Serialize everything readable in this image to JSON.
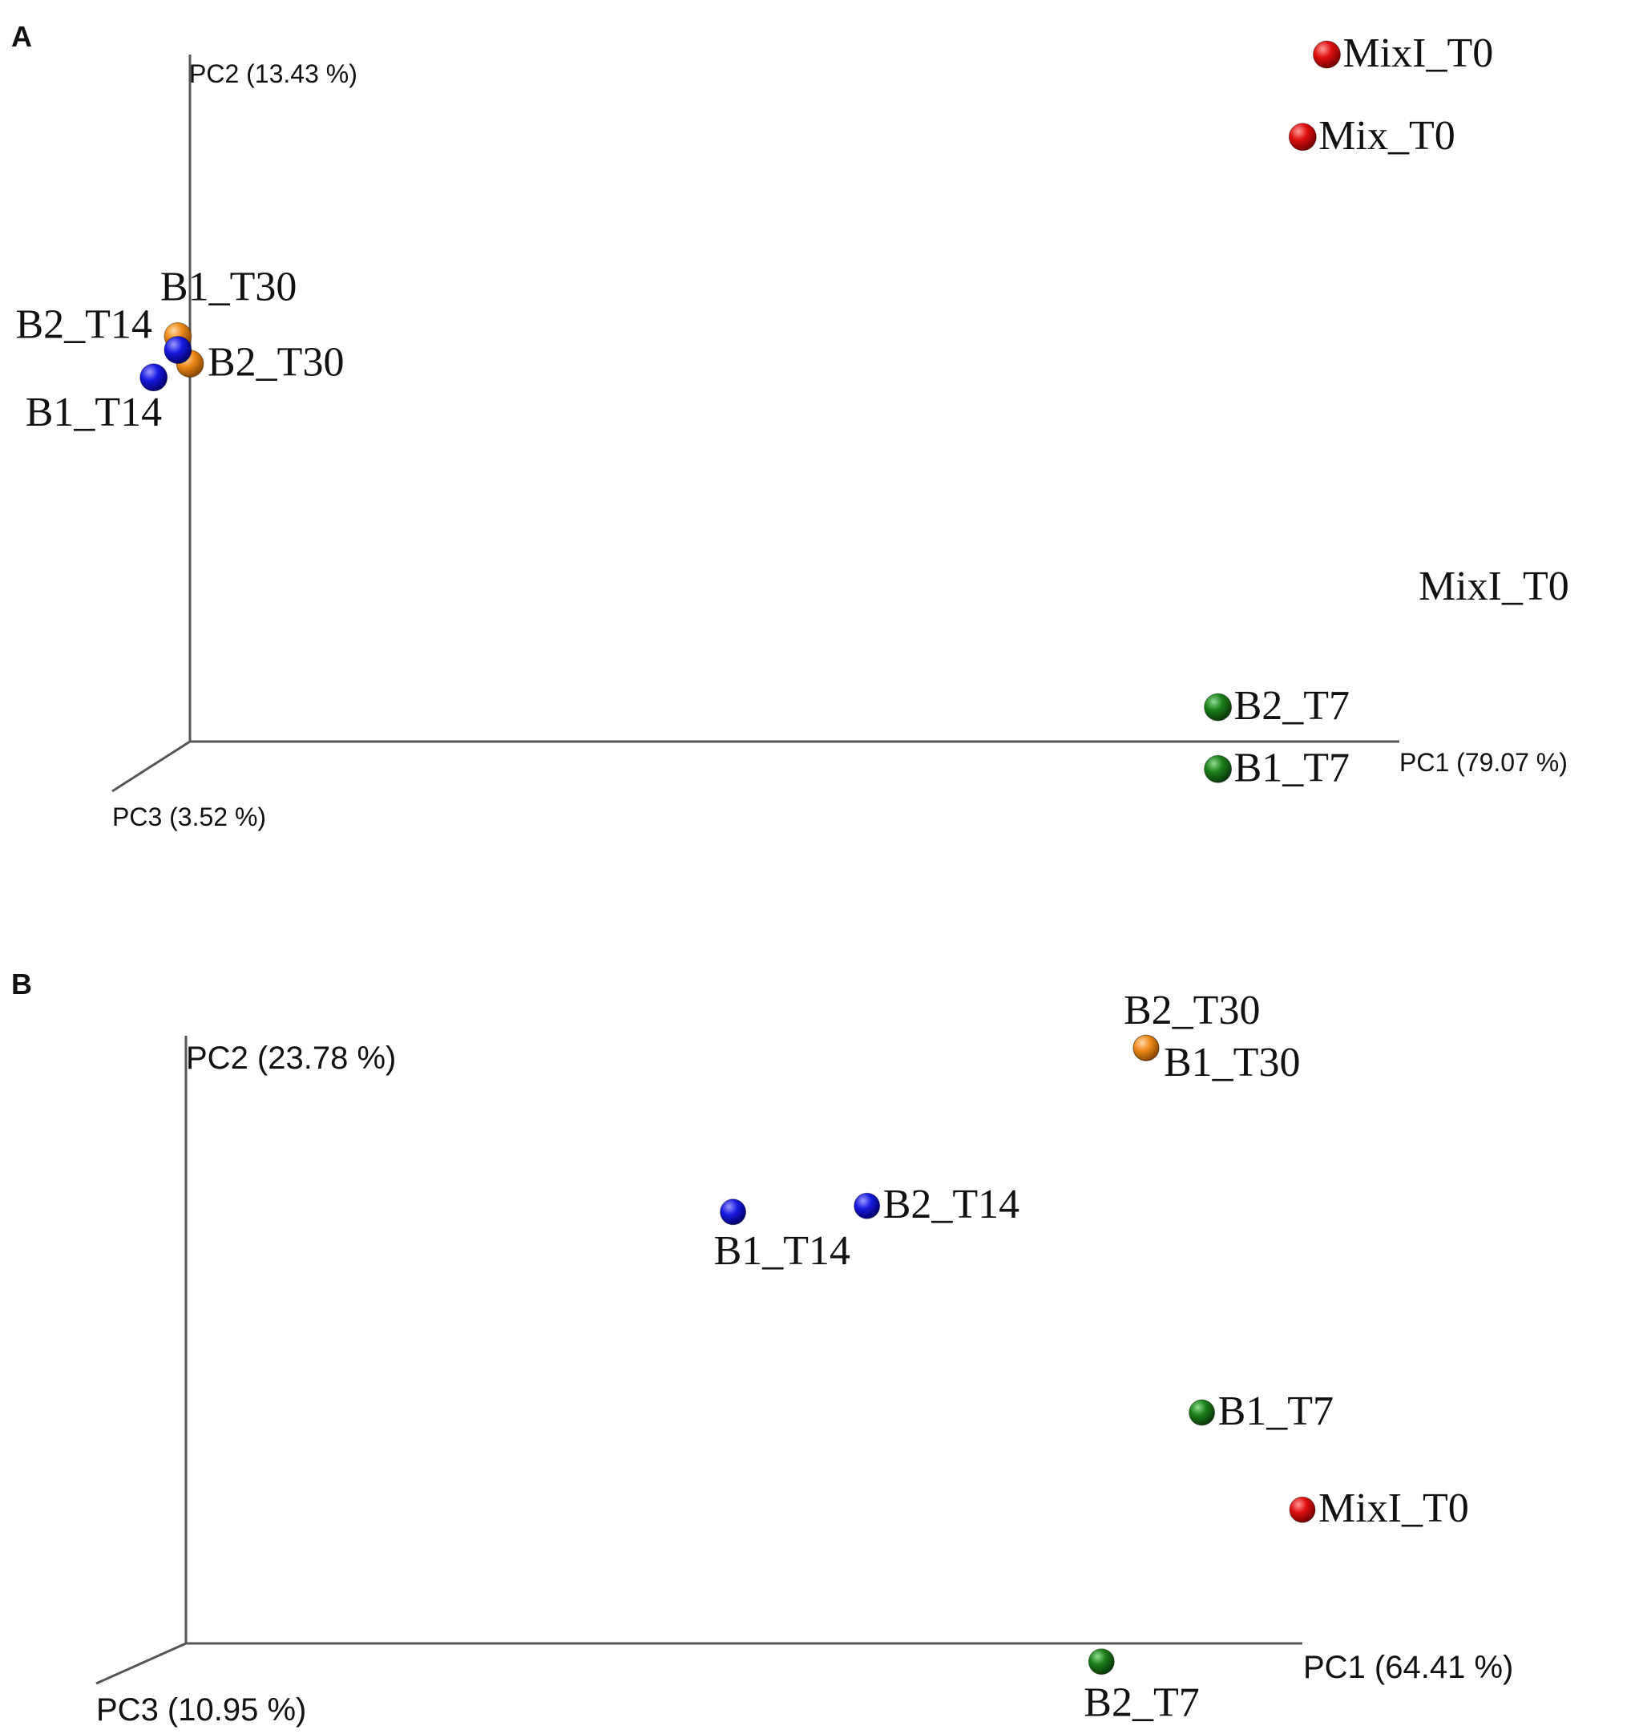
{
  "chart_data": [
    {
      "type": "scatter",
      "panel": "A",
      "axes": {
        "pc1": "PC1 (79.07 %)",
        "pc2": "PC2 (13.43 %)",
        "pc3": "PC3 (3.52 %)"
      },
      "points": [
        {
          "label": "MixI_T0",
          "group": "T0",
          "color": "#e01010",
          "x": 0.94,
          "y": 1.0
        },
        {
          "label": "Mix_T0",
          "group": "T0",
          "color": "#e01010",
          "x": 0.92,
          "y": 0.88
        },
        {
          "label": "B1_T30",
          "group": "T30",
          "color": "#ee8a1a",
          "x": -0.01,
          "y": 0.59
        },
        {
          "label": "B2_T30",
          "group": "T30",
          "color": "#ee8a1a",
          "x": 0.0,
          "y": 0.55
        },
        {
          "label": "B2_T14",
          "group": "T14",
          "color": "#1a1ae0",
          "x": -0.01,
          "y": 0.57
        },
        {
          "label": "B1_T14",
          "group": "T14",
          "color": "#1a1ae0",
          "x": -0.03,
          "y": 0.53
        },
        {
          "label": "B2_T7",
          "group": "T7",
          "color": "#1b7f1b",
          "x": 0.85,
          "y": 0.05
        },
        {
          "label": "B1_T7",
          "group": "T7",
          "color": "#1b7f1b",
          "x": 0.85,
          "y": -0.04
        }
      ],
      "stray_label": "MixI_T0"
    },
    {
      "type": "scatter",
      "panel": "B",
      "axes": {
        "pc1": "PC1 (64.41 %)",
        "pc2": "PC2 (23.78 %)",
        "pc3": "PC3 (10.95 %)"
      },
      "points": [
        {
          "label": "B2_T30",
          "group": "T30",
          "color": "#ee8a1a",
          "x": 0.86,
          "y": 0.98
        },
        {
          "label": "B1_T30",
          "group": "T30",
          "color": "#ee8a1a",
          "x": 0.86,
          "y": 0.98
        },
        {
          "label": "B2_T14",
          "group": "T14",
          "color": "#1a1ae0",
          "x": 0.61,
          "y": 0.72
        },
        {
          "label": "B1_T14",
          "group": "T14",
          "color": "#1a1ae0",
          "x": 0.49,
          "y": 0.71
        },
        {
          "label": "B1_T7",
          "group": "T7",
          "color": "#1b7f1b",
          "x": 0.91,
          "y": 0.38
        },
        {
          "label": "MixI_T0",
          "group": "T0",
          "color": "#e01010",
          "x": 1.0,
          "y": 0.22
        },
        {
          "label": "B2_T7",
          "group": "T7",
          "color": "#1b7f1b",
          "x": 0.82,
          "y": -0.03
        }
      ]
    }
  ],
  "panels": {
    "a": "A",
    "b": "B"
  }
}
